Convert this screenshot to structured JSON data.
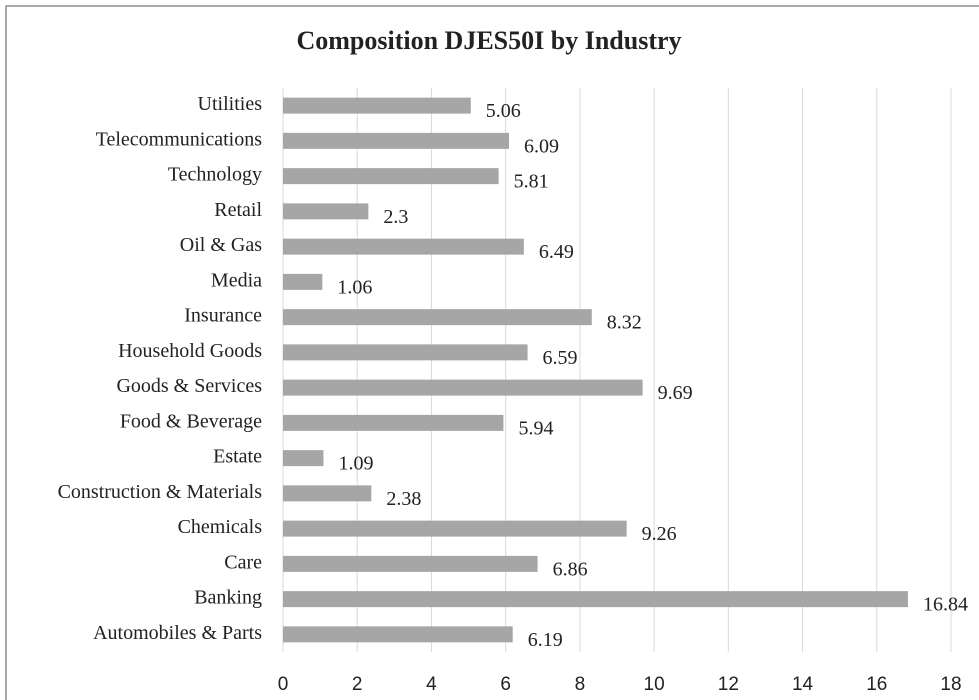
{
  "chart_data": {
    "type": "bar",
    "orientation": "horizontal",
    "title": "Composition DJES50I by Industry",
    "categories": [
      "Utilities",
      "Telecommunications",
      "Technology",
      "Retail",
      "Oil & Gas",
      "Media",
      "Insurance",
      "Household Goods",
      "Goods & Services",
      "Food & Beverage",
      "Estate",
      "Construction & Materials",
      "Chemicals",
      "Care",
      "Banking",
      "Automobiles & Parts"
    ],
    "values": [
      5.06,
      6.09,
      5.81,
      2.3,
      6.49,
      1.06,
      8.32,
      6.59,
      9.69,
      5.94,
      1.09,
      2.38,
      9.26,
      6.86,
      16.84,
      6.19
    ],
    "color": "#a6a6a6",
    "xlim": [
      0,
      18
    ],
    "xticks": [
      0,
      2,
      4,
      6,
      8,
      10,
      12,
      14,
      16,
      18
    ],
    "grid": true
  }
}
